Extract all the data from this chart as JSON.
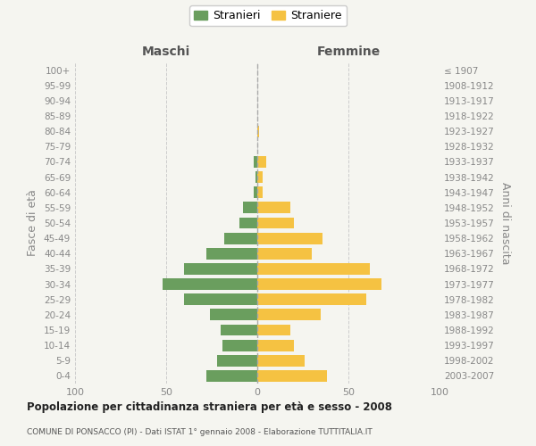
{
  "age_groups": [
    "0-4",
    "5-9",
    "10-14",
    "15-19",
    "20-24",
    "25-29",
    "30-34",
    "35-39",
    "40-44",
    "45-49",
    "50-54",
    "55-59",
    "60-64",
    "65-69",
    "70-74",
    "75-79",
    "80-84",
    "85-89",
    "90-94",
    "95-99",
    "100+"
  ],
  "birth_years": [
    "2003-2007",
    "1998-2002",
    "1993-1997",
    "1988-1992",
    "1983-1987",
    "1978-1982",
    "1973-1977",
    "1968-1972",
    "1963-1967",
    "1958-1962",
    "1953-1957",
    "1948-1952",
    "1943-1947",
    "1938-1942",
    "1933-1937",
    "1928-1932",
    "1923-1927",
    "1918-1922",
    "1913-1917",
    "1908-1912",
    "≤ 1907"
  ],
  "maschi": [
    28,
    22,
    19,
    20,
    26,
    40,
    52,
    40,
    28,
    18,
    10,
    8,
    2,
    1,
    2,
    0,
    0,
    0,
    0,
    0,
    0
  ],
  "femmine": [
    38,
    26,
    20,
    18,
    35,
    60,
    68,
    62,
    30,
    36,
    20,
    18,
    3,
    3,
    5,
    0,
    1,
    0,
    0,
    0,
    0
  ],
  "male_color": "#6a9e5e",
  "female_color": "#f5c242",
  "bg_color": "#f5f5f0",
  "grid_color": "#cccccc",
  "title": "Popolazione per cittadinanza straniera per età e sesso - 2008",
  "subtitle": "COMUNE DI PONSACCO (PI) - Dati ISTAT 1° gennaio 2008 - Elaborazione TUTTITALIA.IT",
  "xlabel_left": "Maschi",
  "xlabel_right": "Femmine",
  "ylabel_left": "Fasce di età",
  "ylabel_right": "Anni di nascita",
  "legend_male": "Stranieri",
  "legend_female": "Straniere",
  "xlim": 100
}
